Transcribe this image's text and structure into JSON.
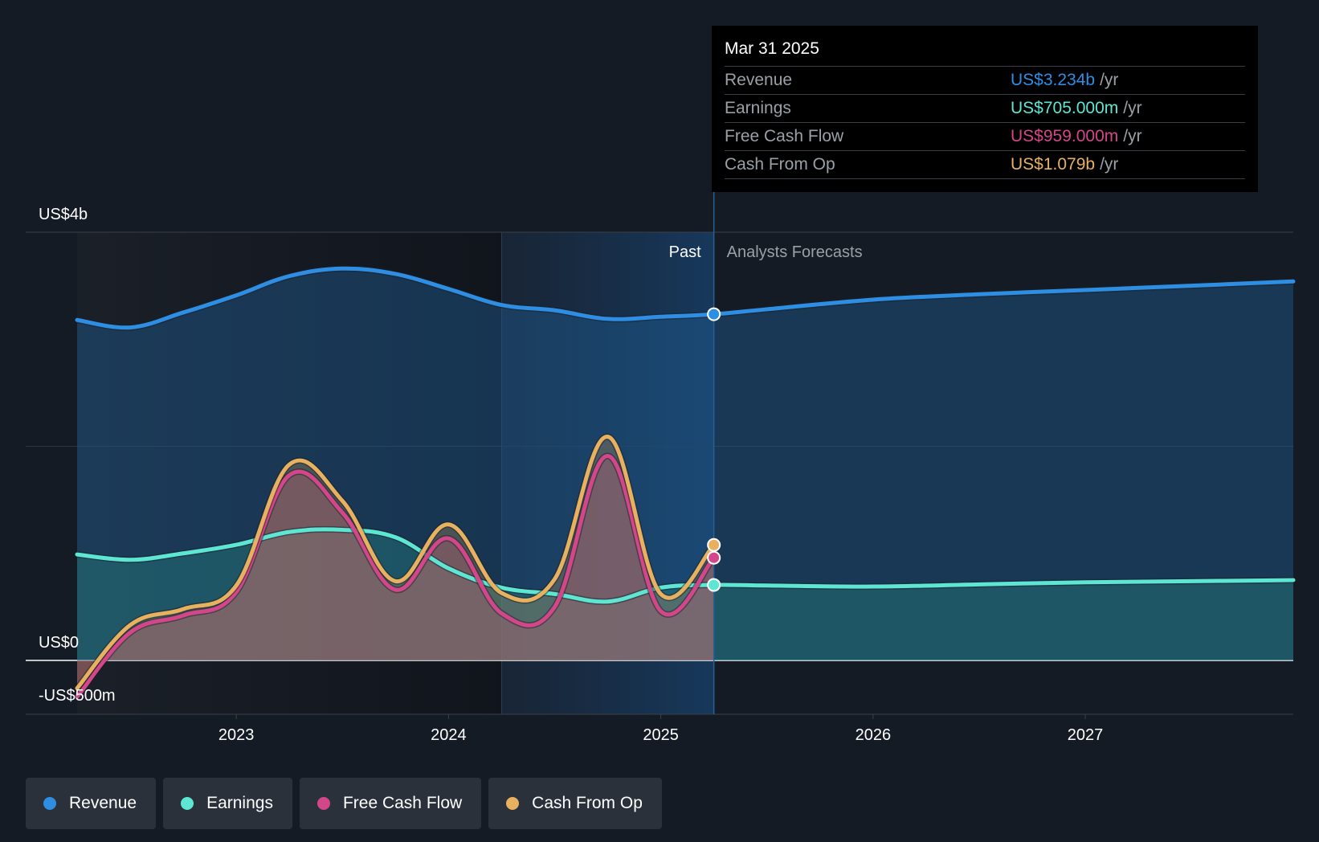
{
  "chart_data": {
    "type": "line",
    "y_tick_labels": [
      "US$4b",
      "US$0",
      "-US$500m"
    ],
    "ylim": [
      -500,
      4000
    ],
    "y_unit": "US$m",
    "x_tick_labels": [
      "2023",
      "2024",
      "2025",
      "2026",
      "2027"
    ],
    "xlim": [
      2022.25,
      2027.98
    ],
    "past_label": "Past",
    "forecast_label": "Analysts Forecasts",
    "past_end": 2025.25,
    "shaded_region_start": 2024.25,
    "series": [
      {
        "name": "Revenue",
        "color": "#2d8ee3",
        "points": [
          [
            2022.25,
            3180
          ],
          [
            2022.5,
            3110
          ],
          [
            2022.75,
            3250
          ],
          [
            2023.0,
            3410
          ],
          [
            2023.25,
            3590
          ],
          [
            2023.5,
            3660
          ],
          [
            2023.75,
            3610
          ],
          [
            2024.0,
            3470
          ],
          [
            2024.25,
            3320
          ],
          [
            2024.5,
            3270
          ],
          [
            2024.75,
            3190
          ],
          [
            2025.0,
            3210
          ],
          [
            2025.25,
            3234
          ],
          [
            2025.5,
            3280
          ],
          [
            2026.0,
            3370
          ],
          [
            2026.5,
            3420
          ],
          [
            2027.0,
            3460
          ],
          [
            2027.5,
            3500
          ],
          [
            2027.98,
            3540
          ]
        ]
      },
      {
        "name": "Earnings",
        "color": "#5ee6d4",
        "points": [
          [
            2022.25,
            990
          ],
          [
            2022.5,
            940
          ],
          [
            2022.75,
            1000
          ],
          [
            2023.0,
            1080
          ],
          [
            2023.25,
            1200
          ],
          [
            2023.5,
            1220
          ],
          [
            2023.75,
            1150
          ],
          [
            2024.0,
            860
          ],
          [
            2024.25,
            680
          ],
          [
            2024.5,
            620
          ],
          [
            2024.75,
            550
          ],
          [
            2025.0,
            680
          ],
          [
            2025.25,
            705
          ],
          [
            2025.5,
            700
          ],
          [
            2026.0,
            690
          ],
          [
            2026.5,
            710
          ],
          [
            2027.0,
            730
          ],
          [
            2027.5,
            740
          ],
          [
            2027.98,
            750
          ]
        ]
      },
      {
        "name": "Free Cash Flow",
        "color": "#d4468a",
        "points": [
          [
            2022.25,
            -340
          ],
          [
            2022.5,
            260
          ],
          [
            2022.75,
            420
          ],
          [
            2023.0,
            640
          ],
          [
            2023.25,
            1730
          ],
          [
            2023.5,
            1380
          ],
          [
            2023.75,
            660
          ],
          [
            2024.0,
            1140
          ],
          [
            2024.25,
            440
          ],
          [
            2024.5,
            500
          ],
          [
            2024.75,
            1910
          ],
          [
            2025.0,
            460
          ],
          [
            2025.25,
            959
          ]
        ]
      },
      {
        "name": "Cash From Op",
        "color": "#e8b160",
        "points": [
          [
            2022.25,
            -260
          ],
          [
            2022.5,
            330
          ],
          [
            2022.75,
            480
          ],
          [
            2023.0,
            700
          ],
          [
            2023.25,
            1830
          ],
          [
            2023.5,
            1490
          ],
          [
            2023.75,
            740
          ],
          [
            2024.0,
            1270
          ],
          [
            2024.25,
            630
          ],
          [
            2024.5,
            760
          ],
          [
            2024.75,
            2090
          ],
          [
            2025.0,
            620
          ],
          [
            2025.25,
            1079
          ]
        ]
      }
    ]
  },
  "tooltip": {
    "date": "Mar 31 2025",
    "rows": [
      {
        "name": "Revenue",
        "value": "US$3.234b",
        "unit": "/yr",
        "color": "#2d8ee3"
      },
      {
        "name": "Earnings",
        "value": "US$705.000m",
        "unit": "/yr",
        "color": "#5ee6d4"
      },
      {
        "name": "Free Cash Flow",
        "value": "US$959.000m",
        "unit": "/yr",
        "color": "#d4468a"
      },
      {
        "name": "Cash From Op",
        "value": "US$1.079b",
        "unit": "/yr",
        "color": "#e8b160"
      }
    ]
  },
  "legend": [
    {
      "label": "Revenue",
      "color": "#2d8ee3"
    },
    {
      "label": "Earnings",
      "color": "#5ee6d4"
    },
    {
      "label": "Free Cash Flow",
      "color": "#d4468a"
    },
    {
      "label": "Cash From Op",
      "color": "#e8b160"
    }
  ]
}
